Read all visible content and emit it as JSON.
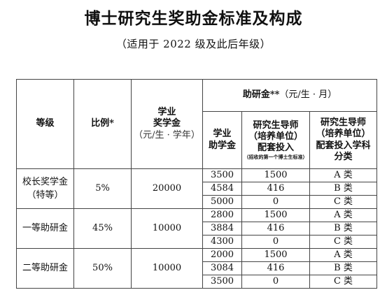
{
  "title": "博士研究生奖助金标准及构成",
  "subtitle": "（适用于 2022 级及此后年级）",
  "header": {
    "grade": "等级",
    "ratio": "比例*",
    "scholarship_line1": "学业",
    "scholarship_line2": "奖学金",
    "scholarship_unit": "（元/生 · 学年）",
    "grant": "助研金**",
    "grant_unit": "（元/生 · 月）",
    "academic_grant_line1": "学业",
    "academic_grant_line2": "助学金",
    "supervisor_line1": "研究生导师",
    "supervisor_line2": "（培养单位）",
    "supervisor_line3": "配套投入",
    "supervisor_note": "（招收的第一个博士生标准）",
    "discipline": "研究生导师（培养单位）配套投入学科分类"
  },
  "groups": [
    {
      "grade_line1": "校长奖学金",
      "grade_line2": "（特等）",
      "ratio": "5%",
      "scholarship": "20000",
      "rows": [
        {
          "academic": "3500",
          "supervisor": "1500",
          "category": "A 类"
        },
        {
          "academic": "4584",
          "supervisor": "416",
          "category": "B 类"
        },
        {
          "academic": "5000",
          "supervisor": "0",
          "category": "C 类"
        }
      ]
    },
    {
      "grade_line1": "一等助研金",
      "grade_line2": "",
      "ratio": "45%",
      "scholarship": "10000",
      "rows": [
        {
          "academic": "2800",
          "supervisor": "1500",
          "category": "A 类"
        },
        {
          "academic": "3884",
          "supervisor": "416",
          "category": "B 类"
        },
        {
          "academic": "4300",
          "supervisor": "0",
          "category": "C 类"
        }
      ]
    },
    {
      "grade_line1": "二等助研金",
      "grade_line2": "",
      "ratio": "50%",
      "scholarship": "10000",
      "rows": [
        {
          "academic": "2000",
          "supervisor": "1500",
          "category": "A 类"
        },
        {
          "academic": "3084",
          "supervisor": "416",
          "category": "B 类"
        },
        {
          "academic": "3500",
          "supervisor": "0",
          "category": "C 类"
        }
      ]
    }
  ]
}
